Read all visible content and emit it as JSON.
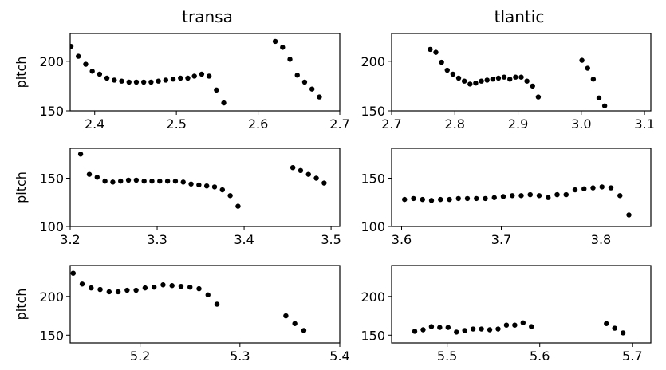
{
  "figure": {
    "column_titles": [
      "transa",
      "tlantic"
    ],
    "ylabel": "pitch",
    "marker_color": "#000000",
    "frame_color": "#000000",
    "background": "#ffffff"
  },
  "chart_data": [
    {
      "type": "scatter",
      "row": 0,
      "col": 0,
      "title": "transa",
      "xlabel": "",
      "ylabel": "pitch",
      "xlim": [
        2.37,
        2.7
      ],
      "ylim": [
        150,
        228
      ],
      "xticks": [
        2.4,
        2.5,
        2.6,
        2.7
      ],
      "xtick_labels": [
        "2.4",
        "2.5",
        "2.6",
        "2.7"
      ],
      "yticks": [
        150,
        200
      ],
      "ytick_labels": [
        "150",
        "200"
      ],
      "grid": false,
      "points": [
        [
          2.371,
          215
        ],
        [
          2.38,
          205
        ],
        [
          2.389,
          197
        ],
        [
          2.397,
          190
        ],
        [
          2.406,
          187
        ],
        [
          2.415,
          183
        ],
        [
          2.424,
          181
        ],
        [
          2.433,
          180
        ],
        [
          2.442,
          179
        ],
        [
          2.451,
          179
        ],
        [
          2.46,
          179
        ],
        [
          2.469,
          179
        ],
        [
          2.478,
          180
        ],
        [
          2.487,
          181
        ],
        [
          2.496,
          182
        ],
        [
          2.505,
          183
        ],
        [
          2.514,
          183
        ],
        [
          2.522,
          185
        ],
        [
          2.531,
          187
        ],
        [
          2.54,
          185
        ],
        [
          2.549,
          171
        ],
        [
          2.558,
          158
        ],
        [
          2.621,
          220
        ],
        [
          2.63,
          214
        ],
        [
          2.639,
          202
        ],
        [
          2.648,
          186
        ],
        [
          2.657,
          179
        ],
        [
          2.666,
          172
        ],
        [
          2.675,
          164
        ]
      ]
    },
    {
      "type": "scatter",
      "row": 0,
      "col": 1,
      "title": "tlantic",
      "xlabel": "",
      "ylabel": "",
      "xlim": [
        2.7,
        3.11
      ],
      "ylim": [
        150,
        228
      ],
      "xticks": [
        2.7,
        2.8,
        2.9,
        3.0,
        3.1
      ],
      "xtick_labels": [
        "2.7",
        "2.8",
        "2.9",
        "3.0",
        "3.1"
      ],
      "yticks": [
        150,
        200
      ],
      "ytick_labels": [
        "150",
        "200"
      ],
      "grid": false,
      "points": [
        [
          2.761,
          212
        ],
        [
          2.77,
          209
        ],
        [
          2.779,
          199
        ],
        [
          2.788,
          191
        ],
        [
          2.797,
          187
        ],
        [
          2.806,
          183
        ],
        [
          2.815,
          180
        ],
        [
          2.824,
          177
        ],
        [
          2.833,
          178
        ],
        [
          2.842,
          180
        ],
        [
          2.851,
          181
        ],
        [
          2.86,
          182
        ],
        [
          2.869,
          183
        ],
        [
          2.878,
          184
        ],
        [
          2.887,
          182
        ],
        [
          2.896,
          184
        ],
        [
          2.905,
          184
        ],
        [
          2.914,
          180
        ],
        [
          2.923,
          175
        ],
        [
          2.932,
          164
        ],
        [
          3.001,
          201
        ],
        [
          3.01,
          193
        ],
        [
          3.019,
          182
        ],
        [
          3.028,
          163
        ],
        [
          3.037,
          155
        ]
      ]
    },
    {
      "type": "scatter",
      "row": 1,
      "col": 0,
      "title": "",
      "xlabel": "",
      "ylabel": "pitch",
      "xlim": [
        3.2,
        3.51
      ],
      "ylim": [
        100,
        181
      ],
      "xticks": [
        3.2,
        3.3,
        3.4,
        3.5
      ],
      "xtick_labels": [
        "3.2",
        "3.3",
        "3.4",
        "3.5"
      ],
      "yticks": [
        100,
        150
      ],
      "ytick_labels": [
        "100",
        "150"
      ],
      "grid": false,
      "points": [
        [
          3.212,
          175
        ],
        [
          3.222,
          154
        ],
        [
          3.231,
          151
        ],
        [
          3.24,
          147
        ],
        [
          3.249,
          146
        ],
        [
          3.258,
          147
        ],
        [
          3.267,
          148
        ],
        [
          3.276,
          148
        ],
        [
          3.285,
          147
        ],
        [
          3.294,
          147
        ],
        [
          3.303,
          147
        ],
        [
          3.312,
          147
        ],
        [
          3.321,
          147
        ],
        [
          3.33,
          146
        ],
        [
          3.339,
          144
        ],
        [
          3.348,
          143
        ],
        [
          3.357,
          142
        ],
        [
          3.366,
          141
        ],
        [
          3.375,
          138
        ],
        [
          3.384,
          132
        ],
        [
          3.393,
          121
        ],
        [
          3.456,
          161
        ],
        [
          3.465,
          158
        ],
        [
          3.474,
          154
        ],
        [
          3.483,
          150
        ],
        [
          3.492,
          145
        ]
      ]
    },
    {
      "type": "scatter",
      "row": 1,
      "col": 1,
      "title": "",
      "xlabel": "",
      "ylabel": "",
      "xlim": [
        3.59,
        3.85
      ],
      "ylim": [
        100,
        181
      ],
      "xticks": [
        3.6,
        3.7,
        3.8
      ],
      "xtick_labels": [
        "3.6",
        "3.7",
        "3.8"
      ],
      "yticks": [
        100,
        150
      ],
      "ytick_labels": [
        "100",
        "150"
      ],
      "grid": false,
      "points": [
        [
          3.603,
          128
        ],
        [
          3.612,
          129
        ],
        [
          3.621,
          128
        ],
        [
          3.63,
          127
        ],
        [
          3.639,
          128
        ],
        [
          3.648,
          128
        ],
        [
          3.657,
          129
        ],
        [
          3.666,
          129
        ],
        [
          3.675,
          129
        ],
        [
          3.684,
          129
        ],
        [
          3.693,
          130
        ],
        [
          3.702,
          131
        ],
        [
          3.711,
          132
        ],
        [
          3.72,
          132
        ],
        [
          3.729,
          133
        ],
        [
          3.738,
          132
        ],
        [
          3.747,
          130
        ],
        [
          3.756,
          133
        ],
        [
          3.765,
          133
        ],
        [
          3.774,
          138
        ],
        [
          3.783,
          139
        ],
        [
          3.792,
          140
        ],
        [
          3.801,
          141
        ],
        [
          3.81,
          140
        ],
        [
          3.819,
          132
        ],
        [
          3.828,
          112
        ]
      ]
    },
    {
      "type": "scatter",
      "row": 2,
      "col": 0,
      "title": "",
      "xlabel": "",
      "ylabel": "pitch",
      "xlim": [
        5.13,
        5.4
      ],
      "ylim": [
        140,
        240
      ],
      "xticks": [
        5.2,
        5.3,
        5.4
      ],
      "xtick_labels": [
        "5.2",
        "5.3",
        "5.4"
      ],
      "yticks": [
        150,
        200
      ],
      "ytick_labels": [
        "150",
        "200"
      ],
      "grid": false,
      "points": [
        [
          5.133,
          230
        ],
        [
          5.142,
          216
        ],
        [
          5.151,
          211
        ],
        [
          5.16,
          209
        ],
        [
          5.169,
          206
        ],
        [
          5.178,
          206
        ],
        [
          5.187,
          208
        ],
        [
          5.196,
          208
        ],
        [
          5.205,
          211
        ],
        [
          5.214,
          212
        ],
        [
          5.223,
          215
        ],
        [
          5.232,
          214
        ],
        [
          5.241,
          213
        ],
        [
          5.25,
          212
        ],
        [
          5.259,
          210
        ],
        [
          5.268,
          202
        ],
        [
          5.277,
          190
        ],
        [
          5.346,
          175
        ],
        [
          5.355,
          165
        ],
        [
          5.364,
          156
        ]
      ]
    },
    {
      "type": "scatter",
      "row": 2,
      "col": 1,
      "title": "",
      "xlabel": "",
      "ylabel": "",
      "xlim": [
        5.44,
        5.72
      ],
      "ylim": [
        140,
        240
      ],
      "xticks": [
        5.5,
        5.6,
        5.7
      ],
      "xtick_labels": [
        "5.5",
        "5.6",
        "5.7"
      ],
      "yticks": [
        150,
        200
      ],
      "ytick_labels": [
        "150",
        "200"
      ],
      "grid": false,
      "points": [
        [
          5.465,
          155
        ],
        [
          5.474,
          157
        ],
        [
          5.483,
          161
        ],
        [
          5.492,
          160
        ],
        [
          5.501,
          160
        ],
        [
          5.51,
          154
        ],
        [
          5.519,
          156
        ],
        [
          5.528,
          158
        ],
        [
          5.537,
          158
        ],
        [
          5.546,
          157
        ],
        [
          5.555,
          158
        ],
        [
          5.564,
          163
        ],
        [
          5.573,
          163
        ],
        [
          5.582,
          166
        ],
        [
          5.591,
          161
        ],
        [
          5.672,
          165
        ],
        [
          5.681,
          159
        ],
        [
          5.69,
          153
        ]
      ]
    }
  ]
}
